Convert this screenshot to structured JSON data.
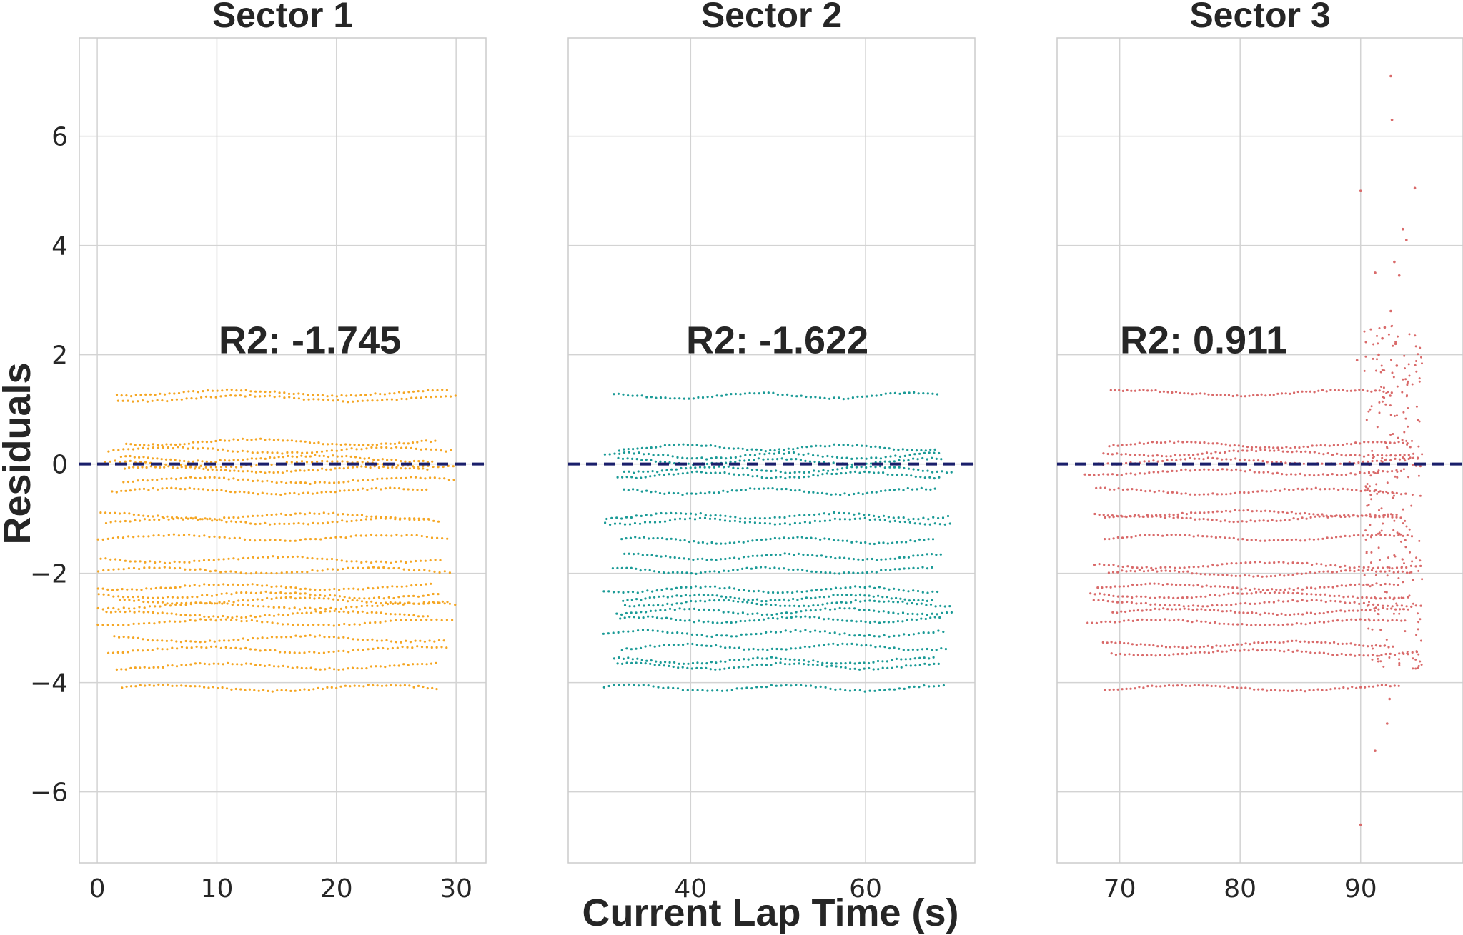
{
  "figure": {
    "xlabel": "Current Lap Time (s)",
    "ylabel": "Residuals"
  },
  "chart_data": [
    {
      "type": "scatter",
      "title": "Sector 1",
      "color": "#f5a623",
      "annotation": "R2: -1.745",
      "xlim": [
        -1.5,
        32.5
      ],
      "ylim": [
        -7.3,
        7.8
      ],
      "x_ticks": [
        0,
        10,
        20,
        30
      ],
      "y_ticks": [
        -6,
        -4,
        -2,
        0,
        2,
        4,
        6
      ],
      "x_range": [
        0,
        30
      ],
      "band_levels": [
        1.3,
        1.2,
        0.4,
        0.25,
        0.1,
        0.0,
        -0.1,
        -0.3,
        -0.5,
        -0.95,
        -1.05,
        -1.35,
        -1.75,
        -1.95,
        -2.25,
        -2.4,
        -2.5,
        -2.6,
        -2.75,
        -2.9,
        -3.2,
        -3.4,
        -3.7,
        -4.1
      ]
    },
    {
      "type": "scatter",
      "title": "Sector 2",
      "color": "#1a9a96",
      "annotation": "R2: -1.622",
      "xlim": [
        26,
        72.5
      ],
      "ylim": [
        -7.3,
        7.8
      ],
      "x_ticks": [
        40,
        60
      ],
      "y_ticks": [
        -6,
        -4,
        -2,
        0,
        2,
        4,
        6
      ],
      "x_range": [
        30,
        70
      ],
      "band_levels": [
        1.25,
        0.3,
        0.15,
        0.05,
        -0.1,
        -0.2,
        -0.5,
        -0.95,
        -1.05,
        -1.4,
        -1.7,
        -1.95,
        -2.3,
        -2.45,
        -2.55,
        -2.7,
        -2.85,
        -3.1,
        -3.35,
        -3.6,
        -3.7,
        -4.1
      ]
    },
    {
      "type": "scatter",
      "title": "Sector 3",
      "color": "#d96a6a",
      "annotation": "R2: 0.911",
      "xlim": [
        64.8,
        98.5
      ],
      "ylim": [
        -7.3,
        7.8
      ],
      "x_ticks": [
        70,
        80,
        90
      ],
      "y_ticks": [
        -6,
        -4,
        -2,
        0,
        2,
        4,
        6
      ],
      "x_range": [
        67,
        95
      ],
      "band_levels": [
        1.3,
        0.35,
        0.2,
        0.05,
        -0.15,
        -0.5,
        -0.9,
        -1.0,
        -1.35,
        -1.85,
        -2.0,
        -2.25,
        -2.4,
        -2.55,
        -2.7,
        -2.9,
        -3.3,
        -3.45,
        -4.1
      ],
      "outliers": [
        [
          92.5,
          7.1
        ],
        [
          92.6,
          6.3
        ],
        [
          94.5,
          5.05
        ],
        [
          90.0,
          5.0
        ],
        [
          93.5,
          4.3
        ],
        [
          93.8,
          4.1
        ],
        [
          92.8,
          3.7
        ],
        [
          91.2,
          3.5
        ],
        [
          93.2,
          3.45
        ],
        [
          92.5,
          2.8
        ],
        [
          92.0,
          2.5
        ],
        [
          91.8,
          2.3
        ],
        [
          92.9,
          2.2
        ],
        [
          91.5,
          2.0
        ],
        [
          93.0,
          1.8
        ],
        [
          89.7,
          1.9
        ],
        [
          92.4,
          -4.3
        ],
        [
          92.2,
          -4.75
        ],
        [
          91.2,
          -5.25
        ],
        [
          90.0,
          -6.6
        ]
      ]
    }
  ]
}
